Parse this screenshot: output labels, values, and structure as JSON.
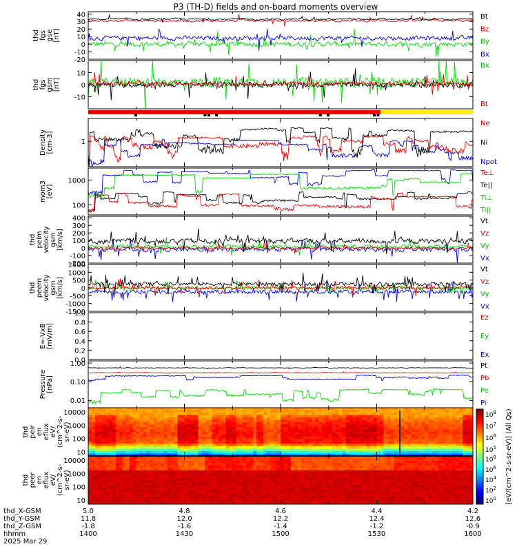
{
  "title": "P3 (TH-D) fields and on-board moments overview",
  "colors": {
    "black": "#000000",
    "red": "#ee0000",
    "green": "#00dd00",
    "blue": "#0000dd",
    "yellow": "#ffee00",
    "text_red": "#dd0000",
    "text_green": "#00bb00",
    "text_blue": "#0000cc"
  },
  "panels": [
    {
      "id": "fgs_gse",
      "ylabel": [
        "thd",
        "fgs",
        "gse",
        "[nT]"
      ],
      "ticks": [
        "40",
        "30",
        "20",
        "10",
        "0",
        "-10",
        "-20"
      ],
      "ylim": [
        -20,
        43
      ],
      "log": false,
      "legend": [
        {
          "text": "Bt",
          "color": "black"
        },
        {
          "text": "Bz",
          "color": "red"
        },
        {
          "text": "By",
          "color": "green"
        },
        {
          "text": "Bx",
          "color": "blue"
        }
      ]
    },
    {
      "id": "fgs_gsm",
      "ylabel": [
        "thd",
        "fgs",
        "gsm",
        "[nT]"
      ],
      "ticks": [
        "10",
        "0",
        "-10"
      ],
      "ylim": [
        -20,
        20
      ],
      "log": false,
      "legend": [
        {
          "text": "Bx",
          "color": "green"
        },
        {
          "text": "Bt",
          "color": "red"
        }
      ]
    },
    {
      "id": "density",
      "ylabel": [
        "Density",
        "[cm-3]"
      ],
      "ticks": [
        "1"
      ],
      "ylim": [
        0.1,
        8
      ],
      "log": true,
      "legend": [
        {
          "text": "Ne",
          "color": "red"
        },
        {
          "text": "Ni",
          "color": "black"
        },
        {
          "text": "Npot",
          "color": "blue"
        }
      ]
    },
    {
      "id": "temperature",
      "ylabel": [
        "mom3",
        "[eV]"
      ],
      "ticks": [
        "1000",
        "100"
      ],
      "ylim": [
        40,
        3000
      ],
      "log": true,
      "legend": [
        {
          "text": "Te⊥",
          "color": "red"
        },
        {
          "text": "Te||",
          "color": "black"
        },
        {
          "text": "Ti⊥",
          "color": "green"
        },
        {
          "text": "Ti||",
          "color": "green"
        }
      ]
    },
    {
      "id": "peim_velocity",
      "ylabel": [
        "thd",
        "peim",
        "velocity",
        "gsm",
        "[km/s]"
      ],
      "ticks": [
        "400",
        "300",
        "200",
        "100",
        "0",
        "-100",
        "-200"
      ],
      "ylim": [
        -200,
        420
      ],
      "log": false,
      "legend": [
        {
          "text": "Vt",
          "color": "black"
        },
        {
          "text": "Vz",
          "color": "red"
        },
        {
          "text": "Vy",
          "color": "green"
        },
        {
          "text": "Vx",
          "color": "blue"
        }
      ]
    },
    {
      "id": "peem_velocity",
      "ylabel": [
        "thd",
        "peem",
        "velocity",
        "gsm",
        "[km/s]"
      ],
      "ticks": [
        "1500",
        "1000",
        "500",
        "0",
        "-500",
        "-1000",
        "-1500"
      ],
      "ylim": [
        -1500,
        1500
      ],
      "log": false,
      "legend": [
        {
          "text": "Vt",
          "color": "black"
        },
        {
          "text": "Vz",
          "color": "red"
        },
        {
          "text": "Vy",
          "color": "green"
        },
        {
          "text": "Vx",
          "color": "blue"
        }
      ]
    },
    {
      "id": "efield",
      "ylabel": [
        "E=-VxB",
        "[mV/m]"
      ],
      "ticks": [
        "1.0",
        "0.8",
        "0.6",
        "0.4",
        "0.2",
        "0.0"
      ],
      "ylim": [
        0,
        1
      ],
      "log": false,
      "legend": [
        {
          "text": "Ez",
          "color": "red"
        },
        {
          "text": "Ey",
          "color": "green"
        },
        {
          "text": "Ex",
          "color": "blue"
        }
      ]
    },
    {
      "id": "pressure",
      "ylabel": [
        "Pressure",
        "[nPa]"
      ],
      "ticks": [
        "1.00",
        "0.10",
        "0.01"
      ],
      "ylim": [
        0.004,
        1.3
      ],
      "log": true,
      "legend": [
        {
          "text": "Pt",
          "color": "black"
        },
        {
          "text": "Pb",
          "color": "red"
        },
        {
          "text": "Pe",
          "color": "green"
        },
        {
          "text": "Pi",
          "color": "blue"
        }
      ]
    },
    {
      "id": "peir_eflux",
      "ylabel": [
        "thd",
        "peir",
        "en",
        "eflux",
        "eV/",
        "(cm^2-s-",
        "sr-eV)"
      ],
      "ticks": [
        "10000",
        "1000",
        "100",
        "10"
      ],
      "ylim": [
        5,
        20000
      ],
      "log": true,
      "legend": []
    },
    {
      "id": "peer_eflux",
      "ylabel": [
        "thd",
        "peer",
        "en",
        "eflux",
        "eV/",
        "(cm^2-s-",
        "sr-eV)"
      ],
      "ticks": [
        "10000",
        "1000",
        "100",
        "10"
      ],
      "ylim": [
        5,
        20000
      ],
      "log": true,
      "legend": []
    }
  ],
  "colorbar": {
    "label": "[eV/(cm^2-s-sr-eV)] (All Qs)",
    "ticks_upper": [
      "10^8",
      "10^7",
      "10^6",
      "10^5"
    ],
    "ticks_lower": [
      "10^8",
      "10^6",
      "10^4",
      "10^2",
      "10^0"
    ]
  },
  "quality_bar": {
    "colors": [
      "red",
      "yellow"
    ],
    "split_fraction": 0.76
  },
  "x_axis": {
    "rows": [
      {
        "label": "thd_X-GSM",
        "values": [
          "5.0",
          "4.8",
          "4.6",
          "4.4",
          "4.2"
        ]
      },
      {
        "label": "thd_Y-GSM",
        "values": [
          "11.8",
          "12.0",
          "12.2",
          "12.4",
          "12.6"
        ]
      },
      {
        "label": "thd_Z-GSM",
        "values": [
          "-1.8",
          "-1.6",
          "-1.4",
          "-1.2",
          "-0.9"
        ]
      },
      {
        "label": "hhmm",
        "values": [
          "1400",
          "1430",
          "1500",
          "1530",
          "1600"
        ]
      }
    ],
    "date": "2025 Mar 29"
  }
}
